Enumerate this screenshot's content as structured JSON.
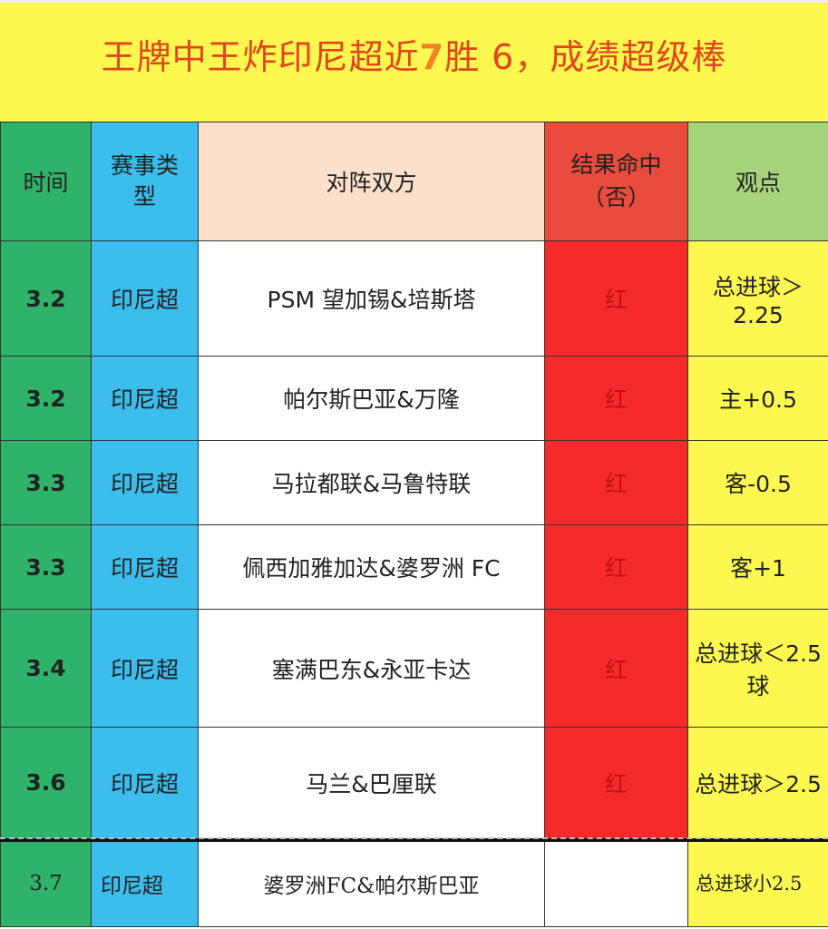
{
  "title": {
    "before": "王牌中王炸印尼超近",
    "masked_digit": "7",
    "after": "胜 6，成绩超级棒"
  },
  "headers": [
    "时间",
    "赛事类型",
    "对阵双方",
    "结果命中（否）",
    "观点"
  ],
  "rows": [
    {
      "date": "3.2",
      "league": "印尼超",
      "match": "PSM 望加锡&培斯塔",
      "result": "红",
      "pick": "总进球＞2.25"
    },
    {
      "date": "3.2",
      "league": "印尼超",
      "match": "帕尔斯巴亚&万隆",
      "result": "红",
      "pick": "主+0.5"
    },
    {
      "date": "3.3",
      "league": "印尼超",
      "match": "马拉都联&马鲁特联",
      "result": "红",
      "pick": "客-0.5"
    },
    {
      "date": "3.3",
      "league": "印尼超",
      "match": "佩西加雅加达&婆罗洲 FC",
      "result": "红",
      "pick": "客+1"
    },
    {
      "date": "3.4",
      "league": "印尼超",
      "match": "塞满巴东&永亚卡达",
      "result": "红",
      "pick": "总进球＜2.5 球"
    },
    {
      "date": "3.6",
      "league": "印尼超",
      "match": "马兰&巴厘联",
      "result": "红",
      "pick": "总进球＞2.5"
    },
    {
      "date": "3.7",
      "league": "印尼超",
      "match": "婆罗洲FC&帕尔斯巴亚",
      "result": "",
      "pick": "总进球小2.5"
    }
  ],
  "colors": {
    "date": "#2fb36a",
    "league": "#3bbdee",
    "result": "#f62a2a",
    "pick": "#fdf84f",
    "title_bg": "#fdf84f",
    "title_text": "#e0461e"
  }
}
